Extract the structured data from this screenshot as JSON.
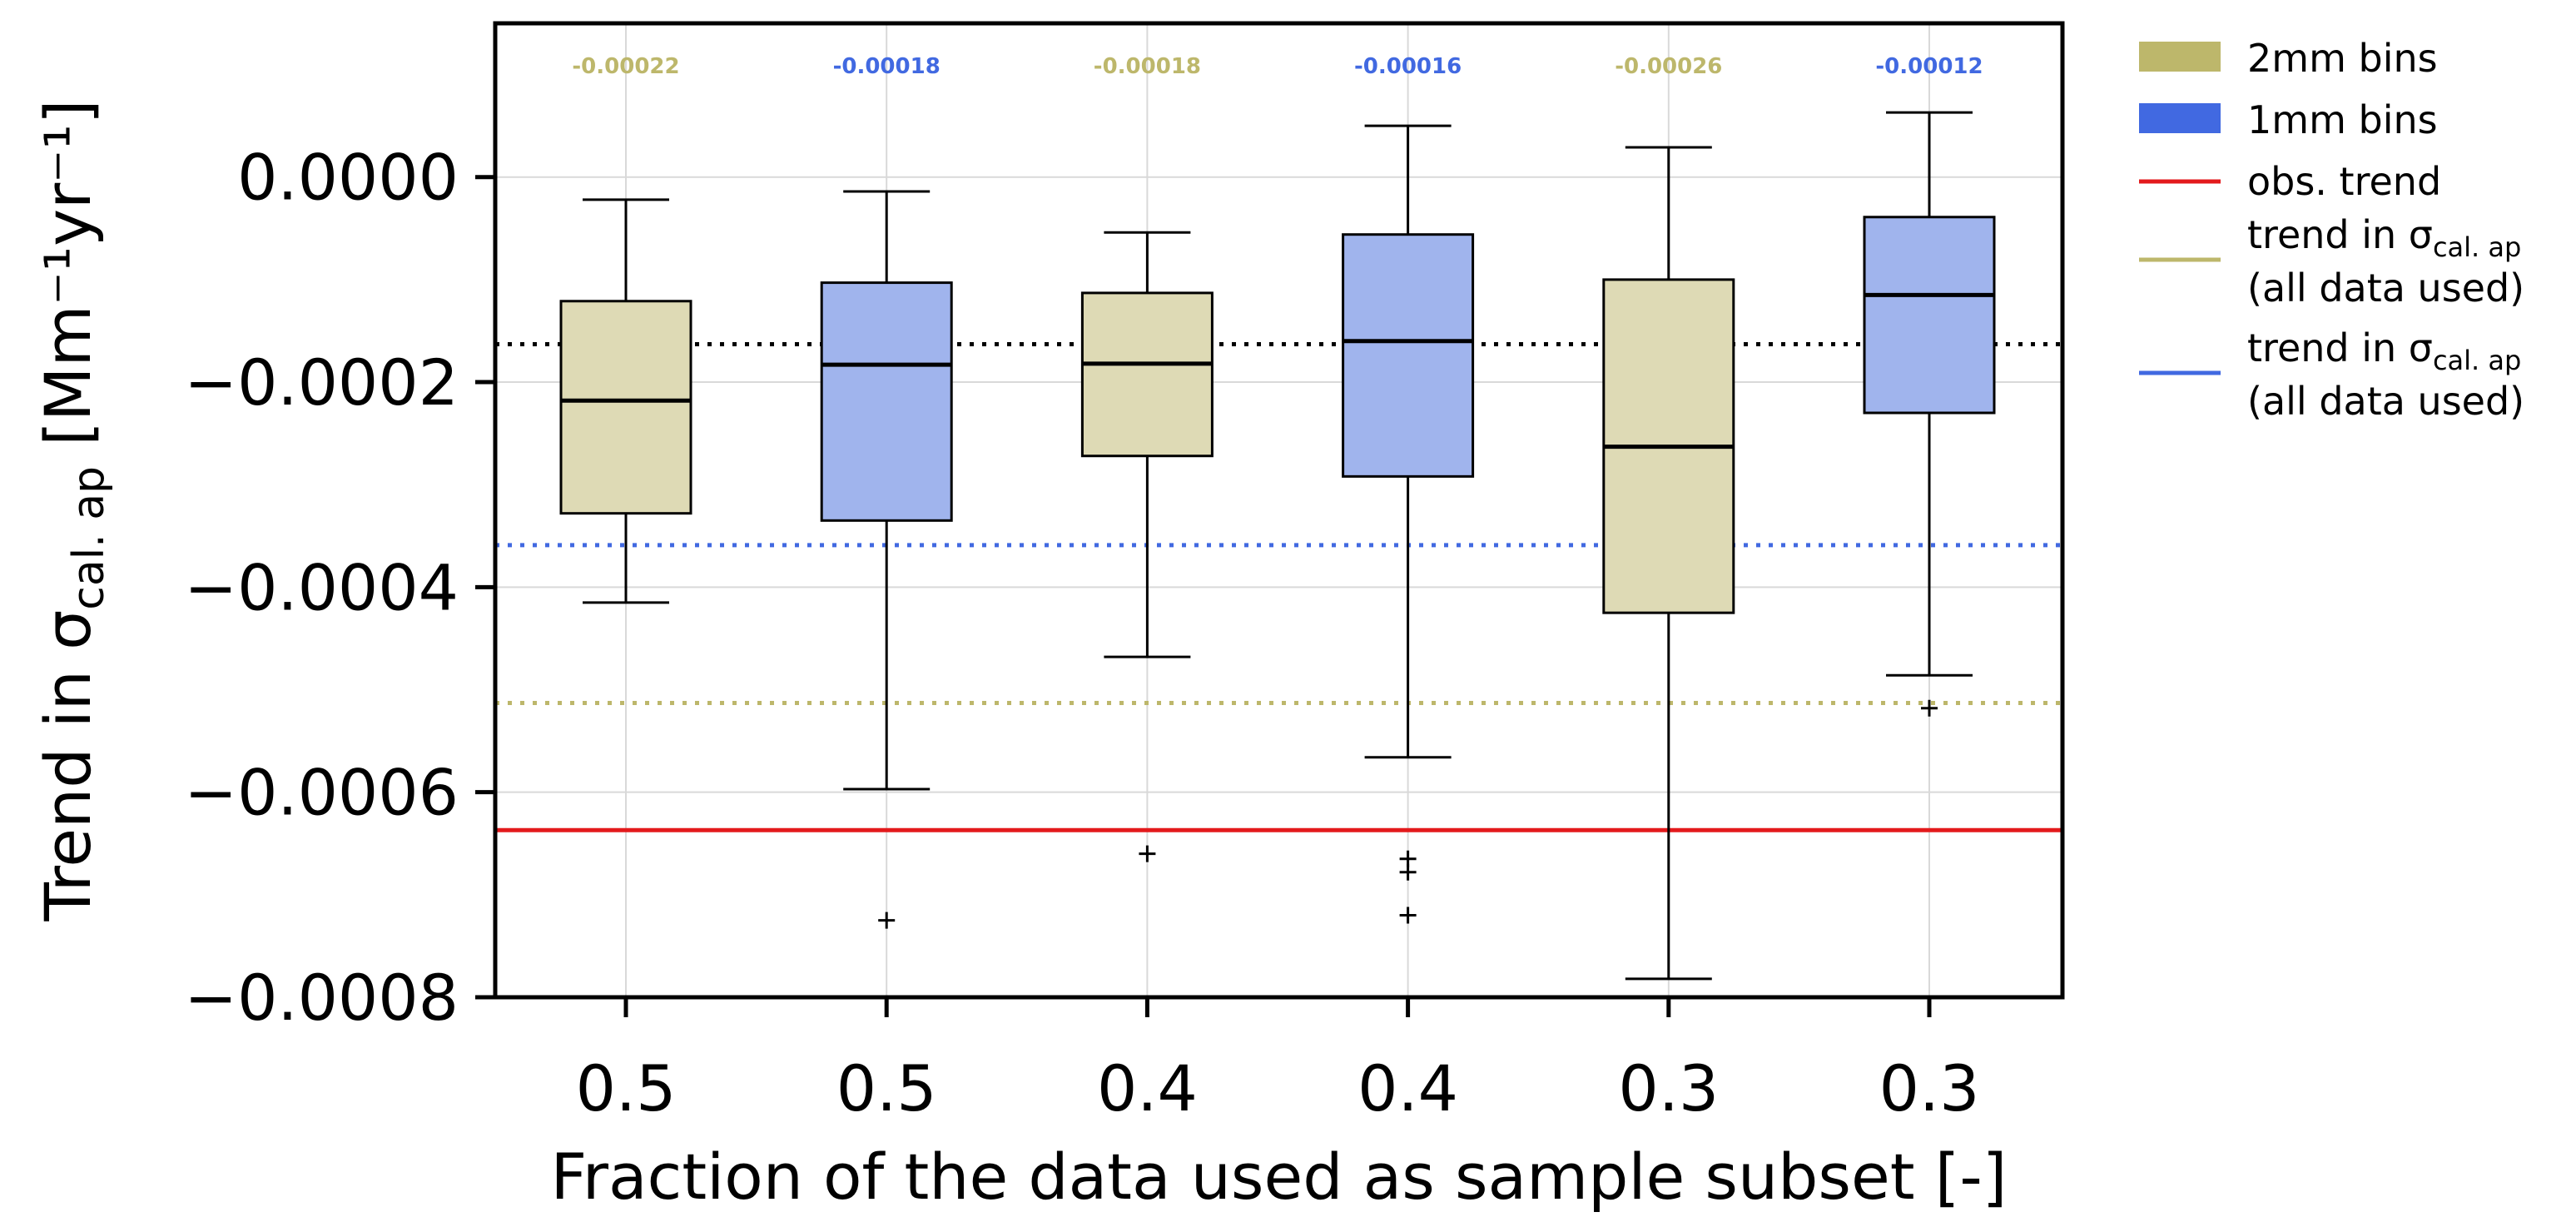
{
  "chart_data": {
    "type": "box",
    "xlabel": "Fraction of the data used as sample subset [-]",
    "ylabel": "Trend in σ",
    "ylabel_subscript": "cal. ap",
    "ylabel_units": " [Mm⁻¹yr⁻¹]",
    "ylim": [
      -0.0008,
      0.00015
    ],
    "yticks": [
      0.0,
      -0.0002,
      -0.0004,
      -0.0006,
      -0.0008
    ],
    "ytick_labels": [
      "0.0000",
      "−0.0002",
      "−0.0004",
      "−0.0006",
      "−0.0008"
    ],
    "grid": true,
    "categories": [
      "0.5",
      "0.5",
      "0.4",
      "0.4",
      "0.3",
      "0.3"
    ],
    "boxes": [
      {
        "category": "0.5",
        "bins": "2mm",
        "color": "#BDB76B",
        "whisker_low": -0.000415,
        "q1": -0.000328,
        "median": -0.000218,
        "q3": -0.000121,
        "whisker_high": -2.2e-05,
        "outliers": [],
        "median_label": "-0.00022"
      },
      {
        "category": "0.5",
        "bins": "1mm",
        "color": "#4169E1",
        "whisker_low": -0.000597,
        "q1": -0.000335,
        "median": -0.000183,
        "q3": -0.000103,
        "whisker_high": -1.4e-05,
        "outliers": [
          -0.000725
        ],
        "median_label": "-0.00018"
      },
      {
        "category": "0.4",
        "bins": "2mm",
        "color": "#BDB76B",
        "whisker_low": -0.000468,
        "q1": -0.000272,
        "median": -0.000182,
        "q3": -0.000113,
        "whisker_high": -5.4e-05,
        "outliers": [
          -0.00066
        ],
        "median_label": "-0.00018"
      },
      {
        "category": "0.4",
        "bins": "1mm",
        "color": "#4169E1",
        "whisker_low": -0.000566,
        "q1": -0.000292,
        "median": -0.00016,
        "q3": -5.6e-05,
        "whisker_high": 5e-05,
        "outliers": [
          -0.000665,
          -0.000678,
          -0.00072
        ],
        "median_label": "-0.00016"
      },
      {
        "category": "0.3",
        "bins": "2mm",
        "color": "#BDB76B",
        "whisker_low": -0.000782,
        "q1": -0.000425,
        "median": -0.000263,
        "q3": -0.0001,
        "whisker_high": 2.9e-05,
        "outliers": [],
        "median_label": "-0.00026"
      },
      {
        "category": "0.3",
        "bins": "1mm",
        "color": "#4169E1",
        "whisker_low": -0.000486,
        "q1": -0.00023,
        "median": -0.000115,
        "q3": -3.9e-05,
        "whisker_high": 6.3e-05,
        "outliers": [
          -0.000518
        ],
        "median_label": "-0.00012"
      }
    ],
    "reference_lines": [
      {
        "name": "obs. trend",
        "value": -0.000637,
        "color": "#E31A1C",
        "style": "solid"
      },
      {
        "name": "trend in σcal. ap (all data used) 2mm",
        "value": -0.000513,
        "color": "#BDB76B",
        "style": "dotted"
      },
      {
        "name": "trend in σcal. ap (all data used) 1mm",
        "value": -0.000359,
        "color": "#4169E1",
        "style": "dotted"
      },
      {
        "name": "",
        "value": -0.000163,
        "color": "#000000",
        "style": "dotted"
      }
    ],
    "legend": {
      "placement": "outside-right",
      "entries": [
        {
          "kind": "patch",
          "color": "#BDB76B",
          "label": "2mm bins"
        },
        {
          "kind": "patch",
          "color": "#4169E1",
          "label": "1mm bins"
        },
        {
          "kind": "line",
          "color": "#E31A1C",
          "label": "obs. trend"
        },
        {
          "kind": "line",
          "color": "#BDB76B",
          "label_main": "trend in σ",
          "label_sub": "cal. ap",
          "label_line2": "(all data used)"
        },
        {
          "kind": "line",
          "color": "#4169E1",
          "label_main": "trend in σ",
          "label_sub": "cal. ap",
          "label_line2": "(all data used)"
        }
      ]
    }
  }
}
